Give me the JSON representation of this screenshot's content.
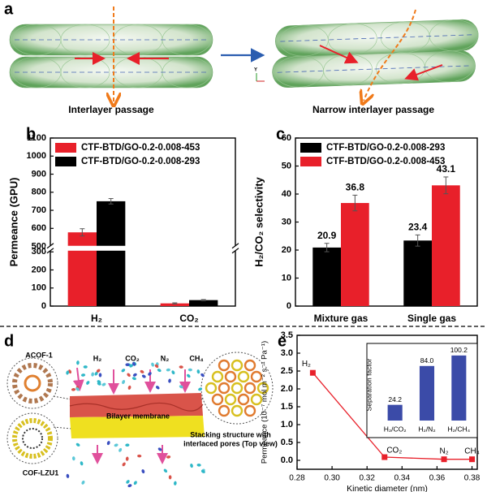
{
  "panel_labels": [
    "a",
    "b",
    "c",
    "d",
    "e"
  ],
  "panel_a": {
    "captions": [
      "Interlayer passage",
      "Narrow interlayer passage"
    ],
    "axis_triad": [
      "Y"
    ]
  },
  "panel_d": {
    "structures": [
      "ACOF-1",
      "COF-LZU1"
    ],
    "gases": [
      "H₂",
      "CO₂",
      "N₂",
      "CH₄"
    ],
    "membrane": "Bilayer membrane",
    "top_view": [
      "Stacking structure with",
      "interlaced pores (Top view)"
    ]
  },
  "chart_data": [
    {
      "type": "bar",
      "y_label": "Permeance (GPU)",
      "categories": [
        "H₂",
        "CO₂"
      ],
      "series": [
        {
          "name": "CTF-BTD/GO-0.2-0.008-453",
          "color": "#e8202a",
          "values": [
            578,
            15
          ],
          "errors": [
            20,
            3
          ]
        },
        {
          "name": "CTF-BTD/GO-0.2-0.008-293",
          "color": "#000000",
          "values": [
            750,
            33
          ],
          "errors": [
            15,
            3
          ]
        }
      ],
      "ylim": [
        0,
        1100
      ],
      "axis_break": [
        320,
        490
      ],
      "yticks": [
        0,
        100,
        200,
        300,
        500,
        600,
        700,
        800,
        900,
        1000,
        1100
      ],
      "legend": "upper left"
    },
    {
      "type": "bar",
      "y_label": "H₂/CO₂ selectivity",
      "categories": [
        "Mixture gas",
        "Single gas"
      ],
      "series": [
        {
          "name": "CTF-BTD/GO-0.2-0.008-293",
          "color": "#000000",
          "values": [
            20.9,
            23.4
          ],
          "errors": [
            1.5,
            2.0
          ]
        },
        {
          "name": "CTF-BTD/GO-0.2-0.008-453",
          "color": "#e8202a",
          "values": [
            36.8,
            43.1
          ],
          "errors": [
            2.8,
            3.0
          ]
        }
      ],
      "ylim": [
        0,
        60
      ],
      "yticks": [
        0,
        10,
        20,
        30,
        40,
        50,
        60
      ],
      "data_labels": true,
      "legend": "upper left"
    },
    {
      "type": "line",
      "x_label": "Kinetic diameter (nm)",
      "y_label": "Permeance (10⁻⁷ mol m⁻² s⁻¹ Pa⁻¹)",
      "x": [
        0.289,
        0.33,
        0.364,
        0.38
      ],
      "series": [
        {
          "color": "#e8202a",
          "values": [
            2.45,
            0.09,
            0.03,
            0.03
          ],
          "point_labels": [
            "H₂",
            "CO₂",
            "N₂",
            "CH₄"
          ]
        }
      ],
      "xlim": [
        0.28,
        0.383
      ],
      "xticks": [
        0.28,
        {
          "value": 0.3,
          "label": "0.30"
        },
        0.32,
        0.34,
        0.36,
        0.38
      ],
      "ylim": [
        -0.25,
        3.5
      ],
      "yticks": [
        {
          "value": 0,
          "label": "0.0"
        },
        0.5,
        {
          "value": 1,
          "label": "1.0"
        },
        1.5,
        {
          "value": 2,
          "label": "2.0"
        },
        2.5,
        {
          "value": 3,
          "label": "3.0"
        },
        3.5
      ]
    },
    {
      "type": "bar",
      "inset": true,
      "y_label": "Separation factor",
      "categories": [
        "H₂/CO₂",
        "H₂/N₂",
        "H₂/CH₄"
      ],
      "values": [
        24.2,
        84.0,
        100.2
      ],
      "value_labels": [
        "24.2",
        "84.0",
        "100.2"
      ],
      "color": "#3b4ba8",
      "ylim": [
        0,
        110
      ]
    }
  ]
}
